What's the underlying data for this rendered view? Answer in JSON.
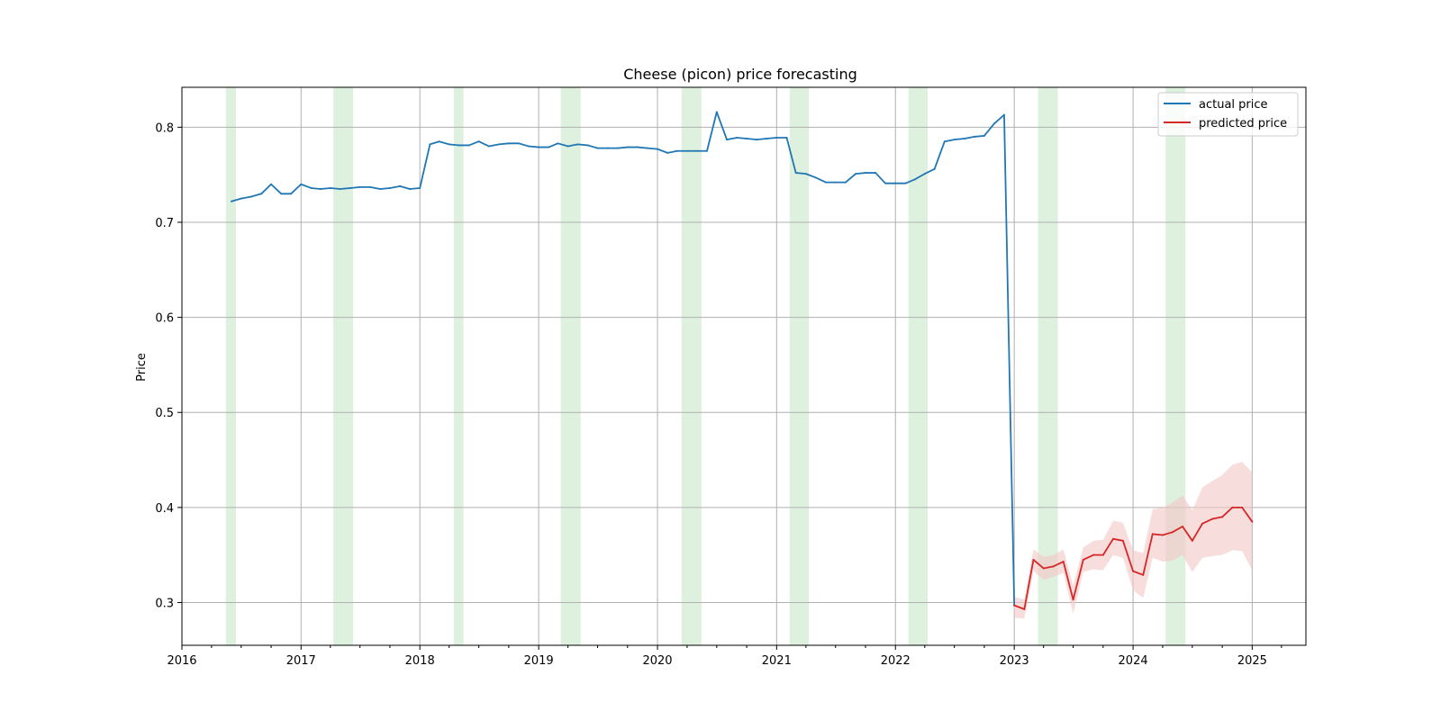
{
  "chart_data": {
    "type": "line",
    "title": "Cheese (picon) price forecasting",
    "xlabel": "",
    "ylabel": "Price",
    "xlim": [
      "2016-01-01",
      "2025-06-15"
    ],
    "ylim": [
      0.255,
      0.842
    ],
    "x_ticks": [
      "2016",
      "2017",
      "2018",
      "2019",
      "2020",
      "2021",
      "2022",
      "2023",
      "2024",
      "2025"
    ],
    "y_ticks": [
      "0.3",
      "0.4",
      "0.5",
      "0.6",
      "0.7",
      "0.8"
    ],
    "grid": true,
    "legend_position": "top-right",
    "colors": {
      "actual": "#1f77b4",
      "predicted": "#d62728",
      "band": "#f4c6c6",
      "shade": "#d8eed8",
      "grid": "#b0b0b0"
    },
    "shaded_periods": [
      [
        "2016-05-15",
        "2016-06-15"
      ],
      [
        "2017-04-10",
        "2017-06-10"
      ],
      [
        "2018-04-15",
        "2018-05-15"
      ],
      [
        "2019-03-10",
        "2019-05-10"
      ],
      [
        "2020-03-15",
        "2020-05-15"
      ],
      [
        "2021-02-10",
        "2021-04-10"
      ],
      [
        "2022-02-10",
        "2022-04-10"
      ],
      [
        "2023-03-15",
        "2023-05-15"
      ],
      [
        "2024-04-10",
        "2024-06-10"
      ]
    ],
    "series": [
      {
        "name": "actual price",
        "x": [
          "2016-06",
          "2016-07",
          "2016-08",
          "2016-09",
          "2016-10",
          "2016-11",
          "2016-12",
          "2017-01",
          "2017-02",
          "2017-03",
          "2017-04",
          "2017-05",
          "2017-06",
          "2017-07",
          "2017-08",
          "2017-09",
          "2017-10",
          "2017-11",
          "2017-12",
          "2018-01",
          "2018-02",
          "2018-03",
          "2018-04",
          "2018-05",
          "2018-06",
          "2018-07",
          "2018-08",
          "2018-09",
          "2018-10",
          "2018-11",
          "2018-12",
          "2019-01",
          "2019-02",
          "2019-03",
          "2019-04",
          "2019-05",
          "2019-06",
          "2019-07",
          "2019-08",
          "2019-09",
          "2019-10",
          "2019-11",
          "2019-12",
          "2020-01",
          "2020-02",
          "2020-03",
          "2020-04",
          "2020-05",
          "2020-06",
          "2020-07",
          "2020-08",
          "2020-09",
          "2020-10",
          "2020-11",
          "2020-12",
          "2021-01",
          "2021-02",
          "2021-03",
          "2021-04",
          "2021-05",
          "2021-06",
          "2021-07",
          "2021-08",
          "2021-09",
          "2021-10",
          "2021-11",
          "2021-12",
          "2022-01",
          "2022-02",
          "2022-03",
          "2022-04",
          "2022-05",
          "2022-06",
          "2022-07",
          "2022-08",
          "2022-09",
          "2022-10",
          "2022-11",
          "2022-12",
          "2023-01"
        ],
        "values": [
          0.722,
          0.725,
          0.727,
          0.73,
          0.74,
          0.73,
          0.73,
          0.74,
          0.736,
          0.735,
          0.736,
          0.735,
          0.736,
          0.737,
          0.737,
          0.735,
          0.736,
          0.738,
          0.735,
          0.736,
          0.782,
          0.785,
          0.782,
          0.781,
          0.781,
          0.785,
          0.78,
          0.782,
          0.783,
          0.783,
          0.78,
          0.779,
          0.779,
          0.783,
          0.78,
          0.782,
          0.781,
          0.778,
          0.778,
          0.778,
          0.779,
          0.779,
          0.778,
          0.777,
          0.773,
          0.775,
          0.775,
          0.775,
          0.775,
          0.816,
          0.787,
          0.789,
          0.788,
          0.787,
          0.788,
          0.789,
          0.789,
          0.752,
          0.751,
          0.747,
          0.742,
          0.742,
          0.742,
          0.751,
          0.752,
          0.752,
          0.741,
          0.741,
          0.741,
          0.745,
          0.751,
          0.756,
          0.785,
          0.787,
          0.788,
          0.79,
          0.791,
          0.804,
          0.813,
          0.297
        ]
      },
      {
        "name": "predicted price",
        "x": [
          "2023-01",
          "2023-02",
          "2023-03",
          "2023-04",
          "2023-05",
          "2023-06",
          "2023-07",
          "2023-08",
          "2023-09",
          "2023-10",
          "2023-11",
          "2023-12",
          "2024-01",
          "2024-02",
          "2024-03",
          "2024-04",
          "2024-05",
          "2024-06",
          "2024-07",
          "2024-08",
          "2024-09",
          "2024-10",
          "2024-11",
          "2024-12",
          "2025-01"
        ],
        "values": [
          0.297,
          0.293,
          0.345,
          0.336,
          0.338,
          0.343,
          0.303,
          0.345,
          0.35,
          0.35,
          0.367,
          0.365,
          0.333,
          0.329,
          0.372,
          0.371,
          0.374,
          0.38,
          0.365,
          0.383,
          0.388,
          0.39,
          0.4,
          0.4,
          0.385
        ],
        "lower": [
          0.284,
          0.283,
          0.333,
          0.324,
          0.327,
          0.331,
          0.288,
          0.332,
          0.335,
          0.334,
          0.35,
          0.347,
          0.313,
          0.305,
          0.347,
          0.343,
          0.344,
          0.35,
          0.332,
          0.347,
          0.349,
          0.35,
          0.355,
          0.354,
          0.334
        ],
        "upper": [
          0.306,
          0.303,
          0.356,
          0.348,
          0.35,
          0.356,
          0.318,
          0.358,
          0.365,
          0.366,
          0.386,
          0.384,
          0.355,
          0.352,
          0.398,
          0.4,
          0.405,
          0.413,
          0.397,
          0.421,
          0.428,
          0.434,
          0.445,
          0.448,
          0.437
        ]
      }
    ]
  }
}
